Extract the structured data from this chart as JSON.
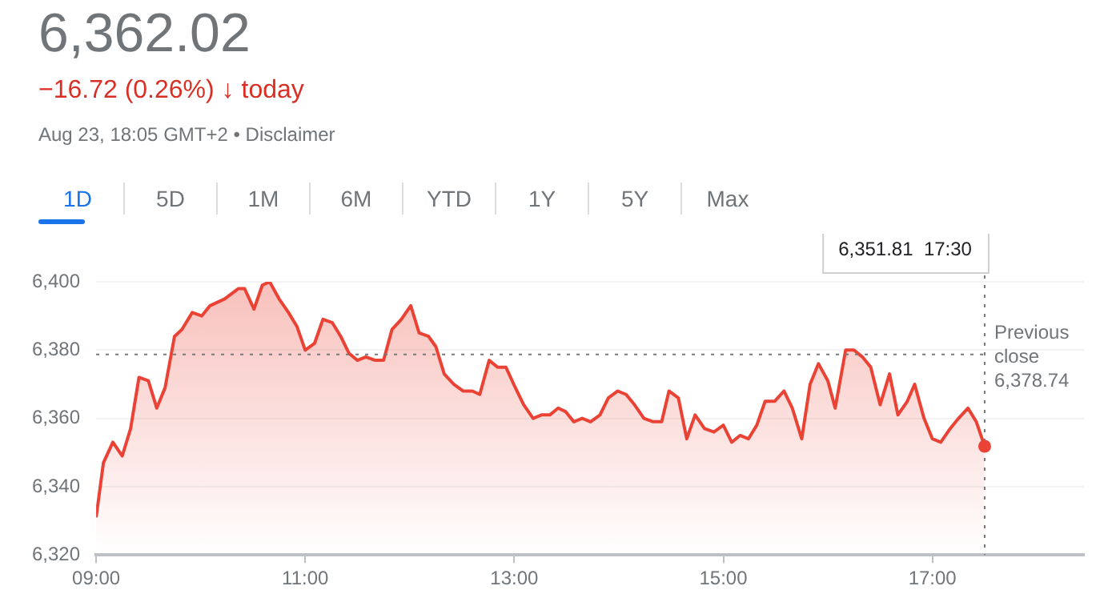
{
  "chart_data": {
    "type": "area",
    "title": "6,362.02",
    "subtitle": "−16.72 (0.26%) ↓ today",
    "annotations": [
      "Aug 23, 18:05 GMT+2 • Disclaimer",
      "1D",
      "5D",
      "1M",
      "6M",
      "YTD",
      "1Y",
      "5Y",
      "Max",
      "6,351.81  17:30"
    ],
    "series": [
      {
        "color": "#ea4335",
        "x": [
          9.0,
          9.07,
          9.16,
          9.25,
          9.33,
          9.41,
          9.5,
          9.58,
          9.66,
          9.75,
          9.82,
          9.92,
          10.01,
          10.09,
          10.23,
          10.36,
          10.42,
          10.51,
          10.59,
          10.66,
          10.75,
          10.84,
          10.92,
          11.0,
          11.09,
          11.17,
          11.26,
          11.34,
          11.42,
          11.5,
          11.58,
          11.67,
          11.75,
          11.83,
          11.92,
          12.01,
          12.09,
          12.18,
          12.25,
          12.33,
          12.42,
          12.51,
          12.6,
          12.67,
          12.76,
          12.84,
          12.92,
          13.01,
          13.09,
          13.18,
          13.26,
          13.34,
          13.42,
          13.49,
          13.57,
          13.65,
          13.73,
          13.82,
          13.9,
          13.99,
          14.07,
          14.15,
          14.24,
          14.33,
          14.41,
          14.48,
          14.57,
          14.65,
          14.73,
          14.82,
          14.91,
          15.0,
          15.08,
          15.16,
          15.24,
          15.32,
          15.4,
          15.49,
          15.58,
          15.66,
          15.75,
          15.83,
          15.91,
          16.0,
          16.07,
          16.17,
          16.25,
          16.33,
          16.41,
          16.5,
          16.59,
          16.67,
          16.76,
          16.83,
          16.92,
          17.0,
          17.08,
          17.17,
          17.25,
          17.34,
          17.42,
          17.5
        ],
        "values": [
          6331,
          6347,
          6353,
          6349,
          6357,
          6372,
          6371,
          6363,
          6369,
          6384,
          6386,
          6391,
          6390,
          6393,
          6395,
          6398,
          6398,
          6392,
          6399,
          6400,
          6395,
          6391,
          6387,
          6380,
          6382,
          6389,
          6388,
          6384,
          6379,
          6377,
          6378,
          6377,
          6377,
          6386,
          6389,
          6393,
          6385,
          6384,
          6381,
          6373,
          6370,
          6368,
          6368,
          6367,
          6377,
          6375,
          6375,
          6369,
          6364,
          6360,
          6361,
          6361,
          6363,
          6362,
          6359,
          6360,
          6359,
          6361,
          6366,
          6368,
          6367,
          6364,
          6360,
          6359,
          6359,
          6368,
          6366,
          6354,
          6361,
          6357,
          6356,
          6358,
          6353,
          6355,
          6354,
          6358,
          6365,
          6365,
          6368,
          6363,
          6354,
          6370,
          6376,
          6371,
          6363,
          6380,
          6380,
          6378,
          6375,
          6364,
          6373,
          6361,
          6365,
          6370,
          6360,
          6354,
          6353,
          6357,
          6360,
          6363,
          6359,
          6351.81
        ]
      }
    ],
    "xlim": [
      9,
      18.45
    ],
    "xticks": [
      {
        "value": 9,
        "label": "09:00"
      },
      {
        "value": 11,
        "label": "11:00"
      },
      {
        "value": 13,
        "label": "13:00"
      },
      {
        "value": 15,
        "label": "15:00"
      },
      {
        "value": 17,
        "label": "17:00"
      }
    ],
    "ylim": [
      6320,
      6400
    ],
    "yticks": [
      {
        "value": 6320,
        "label": "6,320"
      },
      {
        "value": 6340,
        "label": "6,340"
      },
      {
        "value": 6360,
        "label": "6,360"
      },
      {
        "value": 6380,
        "label": "6,380"
      },
      {
        "value": 6400,
        "label": "6,400"
      }
    ],
    "ref_lines": [
      {
        "axis": "y",
        "value": 6378.74,
        "label": "Previous close 6,378.74",
        "line_style": "dotted"
      },
      {
        "axis": "x",
        "value": 17.5,
        "line_style": "dotted"
      }
    ],
    "grid": "y",
    "marker": "none",
    "line_style": "solid"
  }
}
